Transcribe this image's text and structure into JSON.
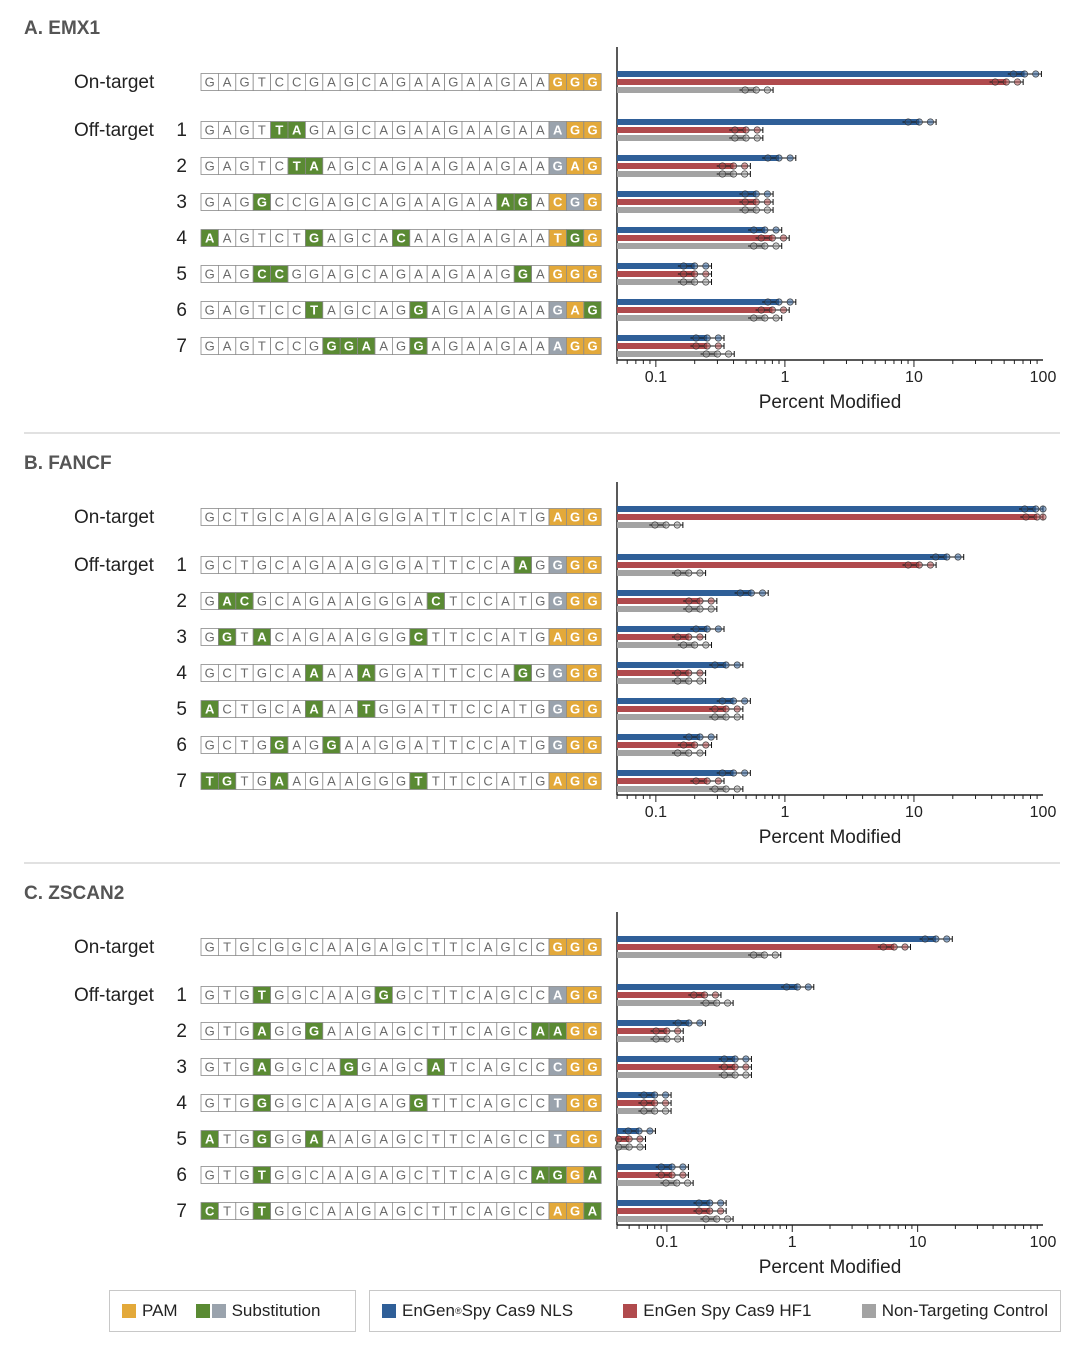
{
  "colors": {
    "pam": "#e3a93a",
    "sub_green": "#5a8a33",
    "sub_gray": "#9aa3ad",
    "cas9_nls": "#2f5f98",
    "cas9_hf1": "#b04a4d",
    "control": "#a3a3a3",
    "divider": "#cfcfcf"
  },
  "legend": {
    "pam_label": "PAM",
    "substitution_label": "Substitution",
    "series": [
      {
        "label_main": "EnGen",
        "label_sup": "®",
        "label_rest": " Spy Cas9 NLS",
        "color": "#2f5f98"
      },
      {
        "label_main": "EnGen Spy Cas9 HF1",
        "label_sup": "",
        "label_rest": "",
        "color": "#b04a4d"
      },
      {
        "label_main": "Non-Targeting Control",
        "label_sup": "",
        "label_rest": "",
        "color": "#a3a3a3"
      }
    ]
  },
  "row_labels": {
    "on_target": "On-target",
    "off_target": "Off-target"
  },
  "chart_data": [
    {
      "type": "bar",
      "title": "A. EMX1",
      "xlabel": "Percent Modified",
      "xscale": "log",
      "xlim": [
        0.05,
        100
      ],
      "xticks": [
        "0.1",
        "1",
        "10",
        "100"
      ],
      "xtick_values": [
        0.1,
        1,
        10,
        100
      ],
      "categories": [
        "On-target",
        "1",
        "2",
        "3",
        "4",
        "5",
        "6",
        "7"
      ],
      "sequences": [
        "GAGTCCGAGCAGAAGAAGAAGGG",
        "GAGTTAGAGCAGAAGAAGAAAGG",
        "GAGTCTAAGCAGAAGAAGAAGAG",
        "GAGGCCGAGCAGAAGAAAGACGG",
        "AAGTCTGAGCACAAGAAGAATGG",
        "GAGCCGGAGCAGAAGAAGGAGGG",
        "GAGTCCTAGCAGGAGAAGAAGAG",
        "GAGTCCGGGAAGGAGAAGAAAGG"
      ],
      "mismatches": [
        [],
        [
          4,
          5
        ],
        [
          5,
          6
        ],
        [
          3,
          17,
          18
        ],
        [
          0,
          6,
          11
        ],
        [
          3,
          4,
          18
        ],
        [
          6,
          12
        ],
        [
          7,
          8,
          9,
          12
        ]
      ],
      "pam_gray": [
        [],
        [
          20
        ],
        [
          20
        ],
        [
          21
        ],
        [],
        [],
        [
          20
        ],
        [
          20
        ]
      ],
      "pam_green": [
        [],
        [],
        [],
        [],
        [
          21
        ],
        [],
        [
          22
        ],
        []
      ],
      "series": [
        {
          "name": "EnGen Spy Cas9 NLS",
          "values": [
            72,
            11,
            0.9,
            0.6,
            0.7,
            0.2,
            0.9,
            0.25
          ]
        },
        {
          "name": "EnGen Spy Cas9 HF1",
          "values": [
            52,
            0.5,
            0.4,
            0.6,
            0.8,
            0.2,
            0.8,
            0.25
          ]
        },
        {
          "name": "Non-Targeting Control",
          "values": [
            0.6,
            0.5,
            0.4,
            0.6,
            0.7,
            0.2,
            0.7,
            0.3
          ]
        }
      ]
    },
    {
      "type": "bar",
      "title": "B. FANCF",
      "xlabel": "Percent Modified",
      "xscale": "log",
      "xlim": [
        0.05,
        100
      ],
      "xticks": [
        "0.1",
        "1",
        "10",
        "100"
      ],
      "xtick_values": [
        0.1,
        1,
        10,
        100
      ],
      "categories": [
        "On-target",
        "1",
        "2",
        "3",
        "4",
        "5",
        "6",
        "7"
      ],
      "sequences": [
        "GCTGCAGAAGGGATTCCATGAGG",
        "GCTGCAGAAGGGATTCCAAGGGG",
        "GACGCAGAAGGGACTCCATGGGG",
        "GGTACAGAAGGGCTTCCATGAGG",
        "GCTGCAAAAAGGATTCCAGGGGG",
        "ACTGCAAAATGGATTCCATGGGG",
        "GCTGGAGGAAGGATTCCATGGGG",
        "TGTGAAGAAGGGTTTCCATGAGG"
      ],
      "mismatches": [
        [],
        [
          18
        ],
        [
          1,
          2,
          13
        ],
        [
          1,
          3,
          12
        ],
        [
          6,
          9,
          18
        ],
        [
          0,
          6,
          9
        ],
        [
          4,
          7
        ],
        [
          0,
          1,
          4,
          12
        ]
      ],
      "pam_gray": [
        [],
        [
          20
        ],
        [
          20
        ],
        [],
        [
          20
        ],
        [
          20
        ],
        [
          20
        ],
        []
      ],
      "pam_green": [
        [],
        [],
        [],
        [],
        [],
        [],
        [],
        []
      ],
      "series": [
        {
          "name": "EnGen Spy Cas9 NLS",
          "values": [
            88,
            18,
            0.55,
            0.25,
            0.35,
            0.4,
            0.22,
            0.4
          ]
        },
        {
          "name": "EnGen Spy Cas9 HF1",
          "values": [
            90,
            11,
            0.22,
            0.18,
            0.18,
            0.35,
            0.2,
            0.25
          ]
        },
        {
          "name": "Non-Targeting Control",
          "values": [
            0.12,
            0.18,
            0.22,
            0.2,
            0.18,
            0.35,
            0.18,
            0.35
          ]
        }
      ]
    },
    {
      "type": "bar",
      "title": "C. ZSCAN2",
      "xlabel": "Percent Modified",
      "xscale": "log",
      "xlim": [
        0.04,
        100
      ],
      "xticks": [
        "0.1",
        "1",
        "10",
        "100"
      ],
      "xtick_values": [
        0.1,
        1,
        10,
        100
      ],
      "categories": [
        "On-target",
        "1",
        "2",
        "3",
        "4",
        "5",
        "6",
        "7"
      ],
      "sequences": [
        "GTGCGGCAAGAGCTTCAGCCGGG",
        "GTGTGGCAAGGGCTTCAGCCAGG",
        "GTGAGGGAAGAGCTTCAGCAAGG",
        "GTGAGGCAGGAGCATCAGCCCGG",
        "GTGGGGCAAGAGGTTCAGCCTGG",
        "ATGGGGAAAGAGCTTCAGCCTGG",
        "GTGTGGCAAGAGCTTCAGCAGGA",
        "CTGTGGCAAGAGCTTCAGCCAGA"
      ],
      "mismatches": [
        [],
        [
          3,
          10
        ],
        [
          3,
          6
        ],
        [
          3,
          8,
          13
        ],
        [
          3,
          12
        ],
        [
          0,
          3,
          6
        ],
        [
          3,
          19
        ],
        [
          0,
          3
        ]
      ],
      "pam_gray": [
        [],
        [
          20
        ],
        [],
        [
          20
        ],
        [
          20
        ],
        [
          20
        ],
        [],
        []
      ],
      "pam_green": [
        [],
        [],
        [
          19,
          20
        ],
        [],
        [],
        [],
        [
          20,
          22
        ],
        [
          22
        ]
      ],
      "series": [
        {
          "name": "EnGen Spy Cas9 NLS",
          "values": [
            14,
            1.1,
            0.15,
            0.35,
            0.08,
            0.06,
            0.11,
            0.22
          ]
        },
        {
          "name": "EnGen Spy Cas9 HF1",
          "values": [
            6.5,
            0.2,
            0.1,
            0.35,
            0.08,
            0.05,
            0.11,
            0.22
          ]
        },
        {
          "name": "Non-Targeting Control",
          "values": [
            0.6,
            0.25,
            0.1,
            0.35,
            0.08,
            0.05,
            0.12,
            0.25
          ]
        }
      ]
    }
  ]
}
